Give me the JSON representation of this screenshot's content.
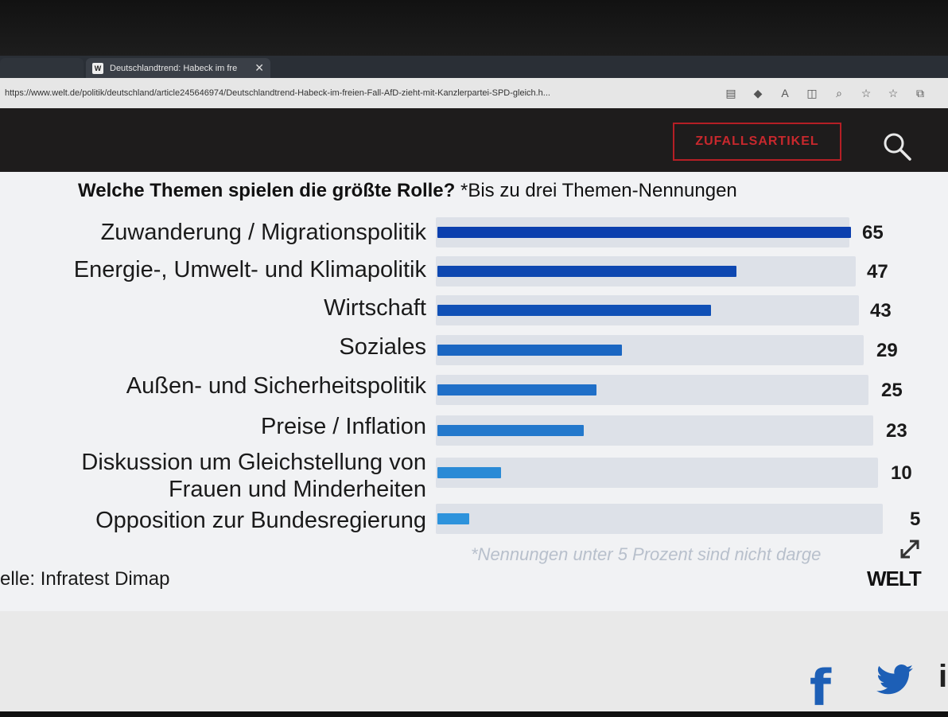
{
  "browser": {
    "tabs": [
      {
        "label": ""
      },
      {
        "label": "Deutschlandtrend: Habeck im fre",
        "favicon": "W"
      },
      {
        "label": ""
      }
    ],
    "url": "https://www.welt.de/politik/deutschland/article245646974/Deutschlandtrend-Habeck-im-freien-Fall-AfD-zieht-mit-Kanzlerpartei-SPD-gleich.h...",
    "toolbar_icons": [
      "reader-mode-icon",
      "shield-icon",
      "read-aloud-icon",
      "split-screen-icon",
      "zoom-icon",
      "add-favorite-icon",
      "favorites-icon",
      "collections-icon"
    ]
  },
  "site": {
    "random_article_label": "ZUFALLSARTIKEL"
  },
  "chart_data": {
    "type": "bar",
    "orientation": "horizontal",
    "title_bold": "Welche Themen spielen die größte Rolle?",
    "title_rest": " *Bis zu drei Themen-Nennungen",
    "categories": [
      "Zuwanderung / Migrationspolitik",
      "Energie-, Umwelt- und Klimapolitik",
      "Wirtschaft",
      "Soziales",
      "Außen- und Sicherheitspolitik",
      "Preise / Inflation",
      "Diskussion um Gleichstellung von Frauen und Minderheiten",
      "Opposition zur Bundesregierung"
    ],
    "values": [
      65,
      47,
      43,
      29,
      25,
      23,
      10,
      5
    ],
    "value_labels": [
      "65",
      "47",
      "43",
      "29",
      "25",
      "23",
      "10",
      "5"
    ],
    "xlim": [
      0,
      65
    ],
    "grid": false,
    "colors": [
      "#0b3fae",
      "#0d47b1",
      "#1050b6",
      "#1a66c2",
      "#1f6fc8",
      "#2378cc",
      "#2a8ad6",
      "#2d93dc"
    ],
    "track_color": "#dde1e8",
    "footnote": "*Nennungen unter 5 Prozent sind nicht darge",
    "source": "elle: Infratest Dimap",
    "brand": "WELT"
  },
  "social": [
    "facebook-icon",
    "twitter-icon"
  ]
}
